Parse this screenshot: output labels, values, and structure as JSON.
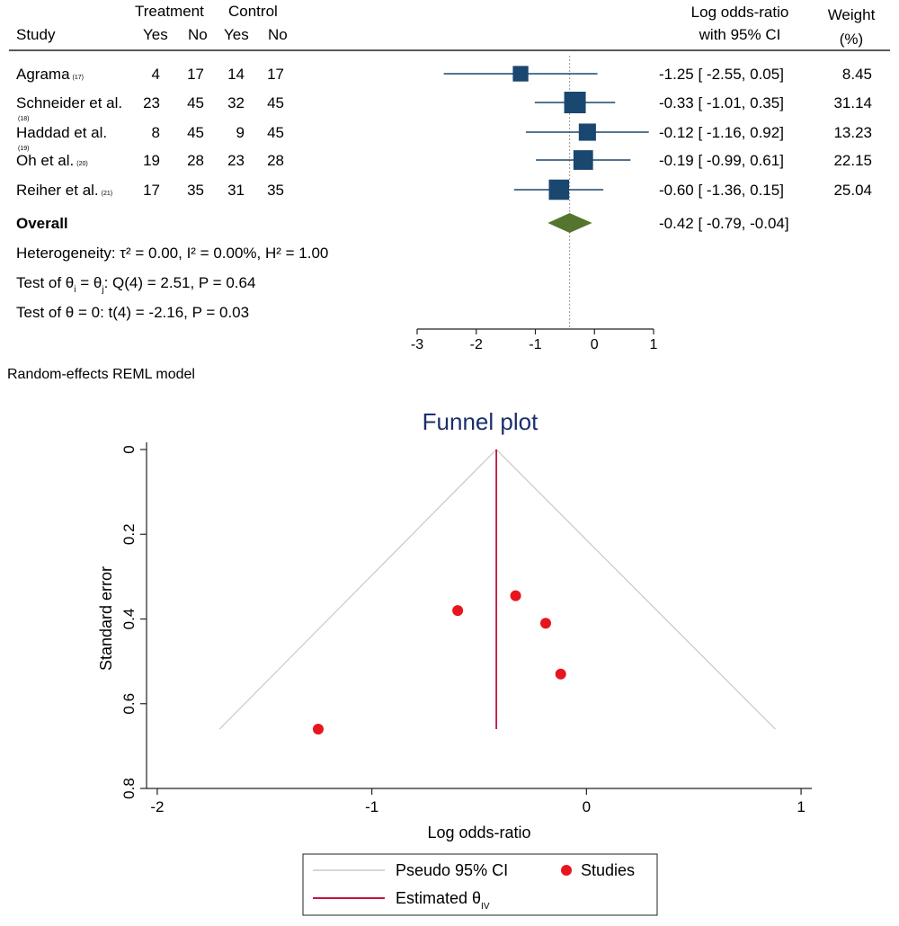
{
  "chart_data": [
    {
      "type": "forest",
      "headers": {
        "study": "Study",
        "treatment": "Treatment",
        "control": "Control",
        "yes": "Yes",
        "no": "No",
        "effect_line1": "Log odds-ratio",
        "effect_line2": "with 95% CI",
        "weight_line1": "Weight",
        "weight_line2": "(%)"
      },
      "studies": [
        {
          "name": "Agrama",
          "ref": "(17)",
          "t_yes": "4",
          "t_no": "17",
          "c_yes": "14",
          "c_no": "17",
          "est": -1.25,
          "lo": -2.55,
          "hi": 0.05,
          "ci_text": "-1.25 [ -2.55,  0.05]",
          "weight": 8.45,
          "weight_text": "8.45"
        },
        {
          "name": "Schneider et al.",
          "ref": "(18)",
          "t_yes": "23",
          "t_no": "45",
          "c_yes": "32",
          "c_no": "45",
          "est": -0.33,
          "lo": -1.01,
          "hi": 0.35,
          "ci_text": "-0.33 [ -1.01,  0.35]",
          "weight": 31.14,
          "weight_text": "31.14"
        },
        {
          "name": "Haddad et al.",
          "ref": "(19)",
          "t_yes": "8",
          "t_no": "45",
          "c_yes": "9",
          "c_no": "45",
          "est": -0.12,
          "lo": -1.16,
          "hi": 0.92,
          "ci_text": "-0.12 [ -1.16,  0.92]",
          "weight": 13.23,
          "weight_text": "13.23"
        },
        {
          "name": "Oh et al.",
          "ref": "(20)",
          "t_yes": "19",
          "t_no": "28",
          "c_yes": "23",
          "c_no": "28",
          "est": -0.19,
          "lo": -0.99,
          "hi": 0.61,
          "ci_text": "-0.19 [ -0.99,  0.61]",
          "weight": 22.15,
          "weight_text": "22.15"
        },
        {
          "name": "Reiher et al.",
          "ref": "(21)",
          "t_yes": "17",
          "t_no": "35",
          "c_yes": "31",
          "c_no": "35",
          "est": -0.6,
          "lo": -1.36,
          "hi": 0.15,
          "ci_text": "-0.60 [ -1.36,  0.15]",
          "weight": 25.04,
          "weight_text": "25.04"
        }
      ],
      "overall": {
        "label": "Overall",
        "est": -0.42,
        "lo": -0.79,
        "hi": -0.04,
        "ci_text": "-0.42 [ -0.79, -0.04]"
      },
      "stats": {
        "heterogeneity": "Heterogeneity: τ² = 0.00, I² = 0.00%, H² = 1.00",
        "q_test_prefix": "Test of θ",
        "q_test_eq": " = θ",
        "q_test_sub_i": "i",
        "q_test_sub_j": "j",
        "q_test_suffix": ": Q(4) = 2.51, P = 0.64",
        "t_test": "Test of θ = 0: t(4) = -2.16, P = 0.03"
      },
      "x_ticks": [
        -3,
        -2,
        -1,
        0,
        1
      ],
      "xlim": [
        -3,
        1
      ],
      "null_line": 0,
      "model_note": "Random-effects REML model",
      "colors": {
        "marker": "#1a476f",
        "diamond": "#55752f",
        "ci_line": "#1a476f"
      }
    },
    {
      "type": "scatter",
      "title": "Funnel plot",
      "xlabel": "Log odds-ratio",
      "ylabel": "Standard error",
      "x_ticks": [
        -2,
        -1,
        0,
        1
      ],
      "y_ticks": [
        "0",
        "0.2",
        "0.4",
        "0.6",
        "0.8"
      ],
      "y_tick_values": [
        0,
        0.2,
        0.4,
        0.6,
        0.8
      ],
      "xlim": [
        -2.05,
        1.05
      ],
      "ylim": [
        0,
        0.8
      ],
      "y_reversed": true,
      "points": [
        {
          "x": -1.25,
          "y": 0.66
        },
        {
          "x": -0.6,
          "y": 0.38
        },
        {
          "x": -0.33,
          "y": 0.345
        },
        {
          "x": -0.19,
          "y": 0.41
        },
        {
          "x": -0.12,
          "y": 0.53
        }
      ],
      "estimate": -0.42,
      "pseudo_ci": {
        "se_max": 0.66,
        "left_x": -1.71,
        "right_x": 0.88
      },
      "legend": {
        "pseudo_ci": "Pseudo 95% CI",
        "studies": "Studies",
        "estimated": "Estimated θ",
        "estimated_sub": "IV"
      },
      "colors": {
        "points": "#e8141e",
        "estimate": "#c0163f",
        "ci": "#c8c8c8",
        "title": "#1a2f6b"
      }
    }
  ]
}
